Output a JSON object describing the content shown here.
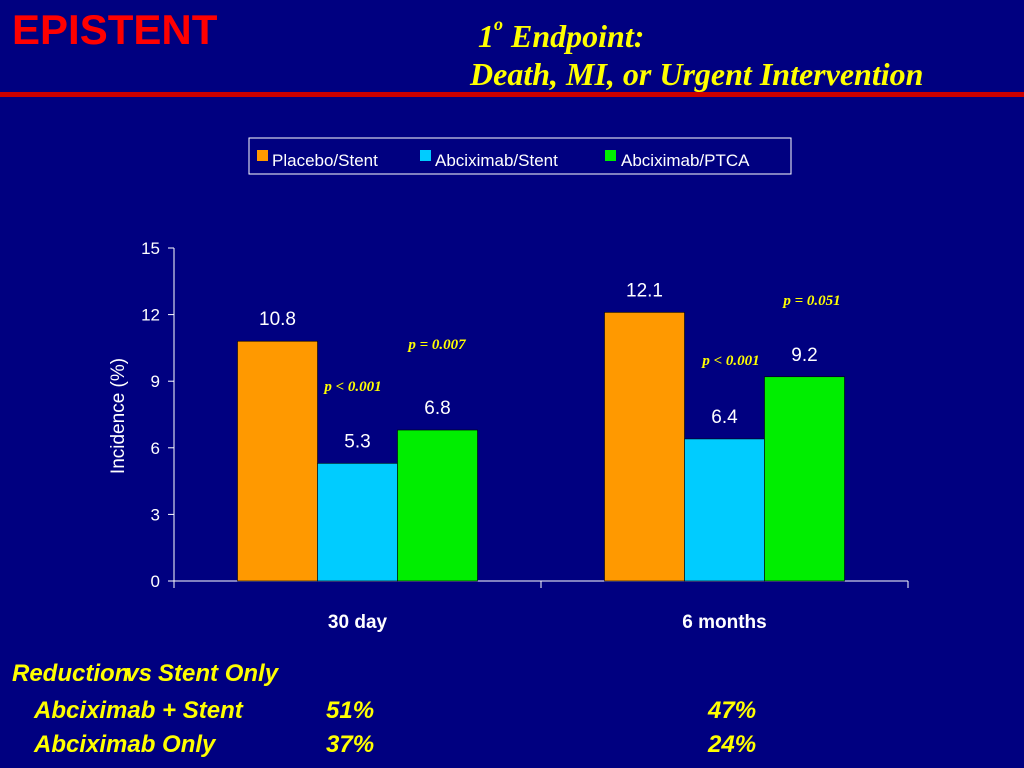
{
  "slide": {
    "brand": "EPISTENT",
    "title_line1_prefix": "1",
    "title_line1_superscript": "o",
    "title_line1_suffix": " Endpoint:",
    "title_line2": "Death, MI, or Urgent Intervention",
    "background_color": "#000080",
    "accent_color": "#ffff00",
    "brand_color": "#ff0000"
  },
  "chart_data": {
    "type": "bar",
    "categories": [
      "30 day",
      "6 months"
    ],
    "series": [
      {
        "name": "Placebo/Stent",
        "values": [
          10.8,
          12.1
        ],
        "color": "#ff9900"
      },
      {
        "name": "Abciximab/Stent",
        "values": [
          5.3,
          6.4
        ],
        "color": "#00ccff"
      },
      {
        "name": "Abciximab/PTCA",
        "values": [
          6.8,
          9.2
        ],
        "color": "#00ee00"
      }
    ],
    "data_labels": [
      "10.8",
      "12.1",
      "5.3",
      "6.4",
      "6.8",
      "9.2"
    ],
    "ylabel": "Incidence (%)",
    "xlabel": "",
    "ylim": [
      0,
      15
    ],
    "yticks": [
      "0",
      "3",
      "6",
      "9",
      "12",
      "15"
    ],
    "legend_position": "top-center",
    "grid": false,
    "annotations": [
      {
        "text": "p < 0.001",
        "category": "30 day",
        "color": "#ffff00"
      },
      {
        "text": "p = 0.007",
        "category": "30 day",
        "color": "#ffff00"
      },
      {
        "text": "p < 0.001",
        "category": "6 months",
        "color": "#ffff00"
      },
      {
        "text": "p = 0.051",
        "category": "6 months",
        "color": "#ffff00"
      }
    ]
  },
  "footer": {
    "heading_reduction": "Reduction",
    "heading_vs": "vs",
    "heading_rest": "Stent Only",
    "rows": [
      {
        "label": "Abciximab + Stent",
        "value_30day": "51%",
        "value_6months": "47%"
      },
      {
        "label": "Abciximab Only",
        "value_30day": "37%",
        "value_6months": "24%"
      }
    ]
  }
}
